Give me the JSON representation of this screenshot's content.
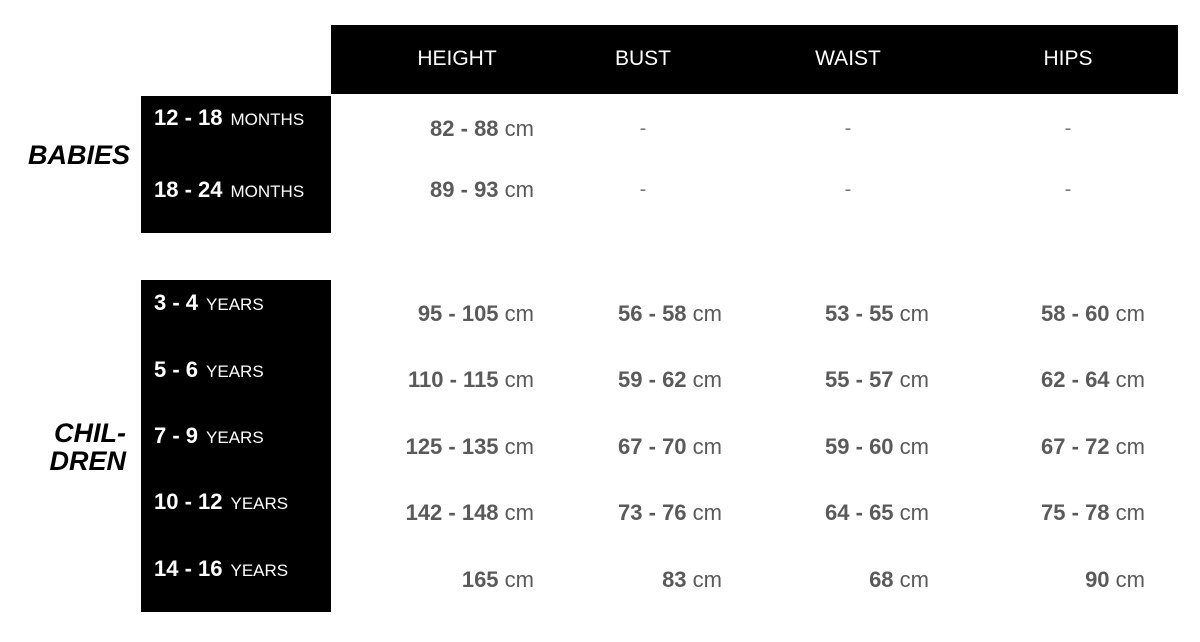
{
  "columns": [
    "HEIGHT",
    "BUST",
    "WAIST",
    "HIPS"
  ],
  "groups": [
    {
      "label": "BABIES",
      "rows": [
        {
          "range": "12 - 18",
          "unit": "MONTHS",
          "values": [
            {
              "n": "82 - 88",
              "u": "cm"
            },
            {
              "n": "-"
            },
            {
              "n": "-"
            },
            {
              "n": "-"
            }
          ]
        },
        {
          "range": "18 - 24",
          "unit": "MONTHS",
          "values": [
            {
              "n": "89 - 93",
              "u": "cm"
            },
            {
              "n": "-"
            },
            {
              "n": "-"
            },
            {
              "n": "-"
            }
          ]
        }
      ]
    },
    {
      "label": "CHIL-\nDREN",
      "label_lines": [
        "CHIL-",
        "DREN"
      ],
      "rows": [
        {
          "range": "3 - 4",
          "unit": "YEARS",
          "values": [
            {
              "n": "95 - 105",
              "u": "cm"
            },
            {
              "n": "56 - 58",
              "u": "cm"
            },
            {
              "n": "53 - 55",
              "u": "cm"
            },
            {
              "n": "58 - 60",
              "u": "cm"
            }
          ]
        },
        {
          "range": "5 - 6",
          "unit": "YEARS",
          "values": [
            {
              "n": "110 - 115",
              "u": "cm"
            },
            {
              "n": "59 - 62",
              "u": "cm"
            },
            {
              "n": "55 - 57",
              "u": "cm"
            },
            {
              "n": "62 - 64",
              "u": "cm"
            }
          ]
        },
        {
          "range": "7 - 9",
          "unit": "YEARS",
          "values": [
            {
              "n": "125 - 135",
              "u": "cm"
            },
            {
              "n": "67 - 70",
              "u": "cm"
            },
            {
              "n": "59 - 60",
              "u": "cm"
            },
            {
              "n": "67 - 72",
              "u": "cm"
            }
          ]
        },
        {
          "range": "10 - 12",
          "unit": "YEARS",
          "values": [
            {
              "n": "142 - 148",
              "u": "cm"
            },
            {
              "n": "73 - 76",
              "u": "cm"
            },
            {
              "n": "64 - 65",
              "u": "cm"
            },
            {
              "n": "75 - 78",
              "u": "cm"
            }
          ]
        },
        {
          "range": "14 - 16",
          "unit": "YEARS",
          "values": [
            {
              "n": "165",
              "u": "cm"
            },
            {
              "n": "83",
              "u": "cm"
            },
            {
              "n": "68",
              "u": "cm"
            },
            {
              "n": "90",
              "u": "cm"
            }
          ]
        }
      ]
    }
  ]
}
